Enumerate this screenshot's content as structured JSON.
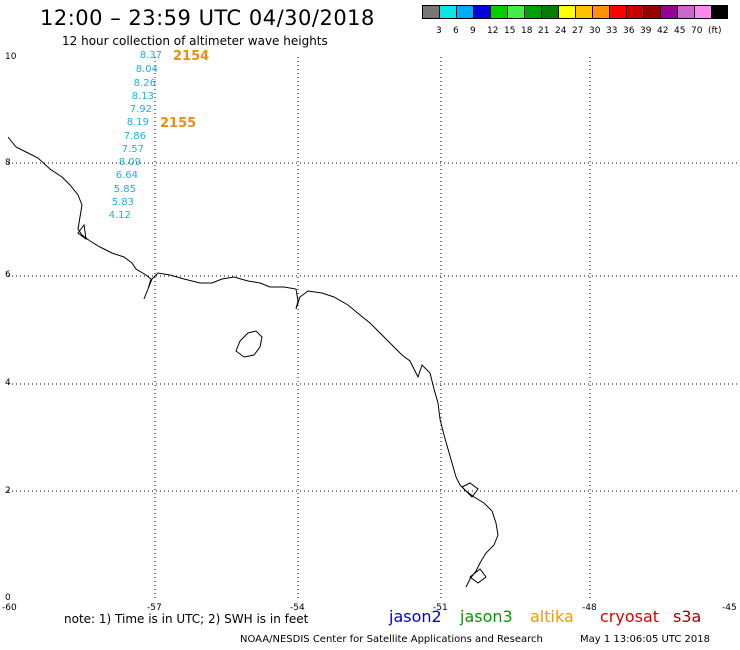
{
  "title": "12:00 – 23:59 UTC 04/30/2018",
  "subtitle": "12 hour collection of altimeter wave heights",
  "colorbar": {
    "colors": [
      "#777777",
      "#00e8e8",
      "#00aaff",
      "#0000e0",
      "#00d000",
      "#44ee44",
      "#00a000",
      "#008000",
      "#ffff00",
      "#ffc000",
      "#ff9000",
      "#ff0000",
      "#cc0000",
      "#990000",
      "#990099",
      "#cc66cc",
      "#ff88ee",
      "#000000"
    ],
    "labels": [
      "3",
      "6",
      "9",
      "12",
      "15",
      "18",
      "21",
      "24",
      "27",
      "30",
      "33",
      "36",
      "39",
      "42",
      "45",
      "70",
      "(ft)"
    ]
  },
  "y_ticks": [
    "10",
    "8",
    "6",
    "4",
    "2",
    "0"
  ],
  "x_ticks": [
    "-60",
    "-57",
    "-54",
    "-51",
    "-48",
    "-45"
  ],
  "wave_heights": [
    "8.37",
    "8.04",
    "8.26",
    "8.13",
    "7.92",
    "8.19",
    "7.86",
    "7.57",
    "8.09",
    "6.64",
    "5.85",
    "5.83",
    "4.12"
  ],
  "pass_labels": [
    "2154",
    "2155"
  ],
  "note": "note: 1) Time is in UTC; 2) SWH is in feet",
  "legend": [
    {
      "name": "jason2",
      "color": "#0000dd"
    },
    {
      "name": "jason3",
      "color": "#009900"
    },
    {
      "name": "altika",
      "color": "#f09a00"
    },
    {
      "name": "cryosat",
      "color": "#dd0000"
    },
    {
      "name": "s3a",
      "color": "#990000"
    }
  ],
  "footer": "NOAA/NESDIS Center for Satellite Applications and Research",
  "footer_time": "May  1 13:06:05 UTC 2018"
}
